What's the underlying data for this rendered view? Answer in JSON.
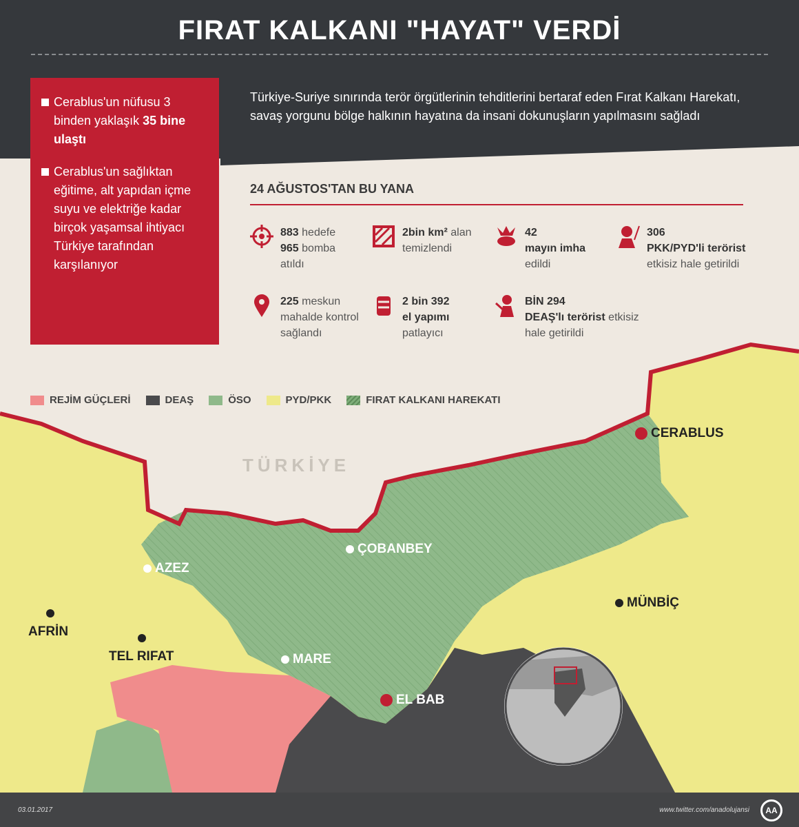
{
  "header": {
    "title": "FIRAT KALKANI \"HAYAT\" VERDİ",
    "intro": "Türkiye-Suriye sınırında terör örgütlerinin tehditlerini bertaraf eden Fırat Kalkanı Harekatı, savaş yorgunu bölge halkının hayatına da insani dokunuşların yapılmasını sağladı"
  },
  "highlights": [
    {
      "pre": "Cerablus'un nüfusu 3 binden yaklaşık ",
      "bold": "35 bine ulaştı"
    },
    {
      "pre": "Cerablus'un sağlıktan eğitime, alt yapıdan içme suyu ve elektriğe kadar birçok yaşamsal ihtiyacı Türkiye tarafından karşılanıyor",
      "bold": ""
    }
  ],
  "stats_title": "24 AĞUSTOS'TAN BU YANA",
  "stats": [
    {
      "icon": "crosshair-icon",
      "l1b": "883",
      "l1": " hedefe",
      "l2b": "965",
      "l2": " bomba",
      "l3": "atıldı"
    },
    {
      "icon": "cleared-area-icon",
      "l1b": "2bin km²",
      "l1": " alan",
      "l2b": "",
      "l2": "temizlendi",
      "l3": ""
    },
    {
      "icon": "mine-explosion-icon",
      "l1b": "42",
      "l1": "",
      "l2b": "mayın imha",
      "l2": "",
      "l3": "edildi"
    },
    {
      "icon": "pkk-terrorist-icon",
      "l1b": "306",
      "l1": "",
      "l2b": "PKK/PYD'li terörist",
      "l2": "",
      "l3": "etkisiz hale getirildi"
    },
    {
      "icon": "location-pin-icon",
      "l1b": "225",
      "l1": " meskun",
      "l2b": "",
      "l2": "mahalde kontrol",
      "l3": "sağlandı"
    },
    {
      "icon": "explosive-icon",
      "l1b": "2 bin 392",
      "l1": "",
      "l2b": "el yapımı",
      "l2": "",
      "l3": "patlayıcı"
    },
    {
      "icon": "deas-terrorist-icon",
      "l1b": "BİN 294",
      "l1": "",
      "l2b": "DEAŞ'lı terörist",
      "l2": " etkisiz",
      "l3": "hale getirildi"
    }
  ],
  "legend": [
    {
      "label": "REJİM GÜÇLERİ",
      "color": "#f08c8c"
    },
    {
      "label": "DEAŞ",
      "color": "#4a4a4c"
    },
    {
      "label": "ÖSO",
      "color": "#8fb98a"
    },
    {
      "label": "PYD/PKK",
      "color": "#eee98a"
    },
    {
      "label": "FIRAT KALKANI HAREKATI",
      "color": "#7fae7a",
      "hatched": true
    }
  ],
  "map": {
    "country_label": "TÜRKİYE",
    "cities": [
      "CERABLUS",
      "ÇOBANBEY",
      "AZEZ",
      "AFRİN",
      "TEL RIFAT",
      "MARE",
      "EL BAB",
      "MÜNBİÇ"
    ],
    "border_color": "#c01f32"
  },
  "footer": {
    "date": "03.01.2017",
    "twitter": "www.twitter.com/anadolujansi",
    "logo": "AA"
  }
}
